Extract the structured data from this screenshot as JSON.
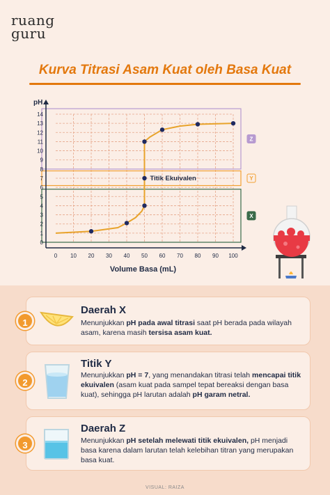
{
  "brand": {
    "line1": "ruang",
    "line2": "guru"
  },
  "title": "Kurva Titrasi Asam Kuat oleh Basa Kuat",
  "chart_data": {
    "type": "line",
    "ylabel": "pH",
    "xlabel": "Volume Basa (mL)",
    "xlim": [
      0,
      100
    ],
    "ylim": [
      0,
      14
    ],
    "xticks": [
      0,
      10,
      20,
      30,
      40,
      50,
      60,
      70,
      80,
      90,
      100
    ],
    "yticks": [
      0,
      1,
      2,
      3,
      4,
      5,
      6,
      7,
      8,
      9,
      10,
      11,
      12,
      13,
      14
    ],
    "grid": true,
    "points": [
      {
        "x": 20,
        "y": 1.2
      },
      {
        "x": 40,
        "y": 2.1
      },
      {
        "x": 50,
        "y": 4
      },
      {
        "x": 50,
        "y": 7
      },
      {
        "x": 50,
        "y": 11
      },
      {
        "x": 60,
        "y": 12.3
      },
      {
        "x": 80,
        "y": 12.9
      },
      {
        "x": 100,
        "y": 13
      }
    ],
    "curve": [
      [
        0,
        1
      ],
      [
        20,
        1.2
      ],
      [
        35,
        1.6
      ],
      [
        40,
        2.1
      ],
      [
        45,
        2.7
      ],
      [
        48.5,
        3.4
      ],
      [
        50,
        4
      ],
      [
        50,
        11
      ],
      [
        53,
        11.5
      ],
      [
        60,
        12.3
      ],
      [
        70,
        12.7
      ],
      [
        80,
        12.9
      ],
      [
        100,
        13
      ]
    ],
    "annotation": "Titik Ekuivalen",
    "regions": [
      {
        "label": "Z",
        "y_from": 8,
        "y_to": 14.6,
        "color": "#b79ad0"
      },
      {
        "label": "Y",
        "y_from": 6.2,
        "y_to": 7.8,
        "color": "#f2a033"
      },
      {
        "label": "X",
        "y_from": 0,
        "y_to": 5.8,
        "color": "#3a6b4a"
      }
    ]
  },
  "cards": [
    {
      "num": "1",
      "title": "Daerah X",
      "pre": "Menunjukkan ",
      "b1": "pH pada awal titrasi",
      "mid": " saat pH berada pada wilayah asam, karena masih ",
      "b2": "tersisa asam kuat.",
      "post": ""
    },
    {
      "num": "2",
      "title": "Titik Y",
      "pre": "Menunjukkan ",
      "b1": "pH = 7",
      "mid": ", yang menandakan titrasi telah ",
      "b2": "mencapai titik ekuivalen",
      "mid2": " (asam kuat pada sampel tepat bereaksi dengan basa kuat), sehingga pH larutan adalah ",
      "b3": "pH garam netral."
    },
    {
      "num": "3",
      "title": "Daerah Z",
      "pre": "Menunjukkan ",
      "b1": "pH setelah melewati titik ekuivalen,",
      "mid": " pH menjadi basa karena dalam larutan telah kelebihan titran yang merupakan basa kuat.",
      "b2": "",
      "post": ""
    }
  ],
  "credit": "VISUAL: RAIZA",
  "colors": {
    "accent": "#e3780d",
    "curve": "#e8a32b",
    "point": "#1f2a60"
  }
}
